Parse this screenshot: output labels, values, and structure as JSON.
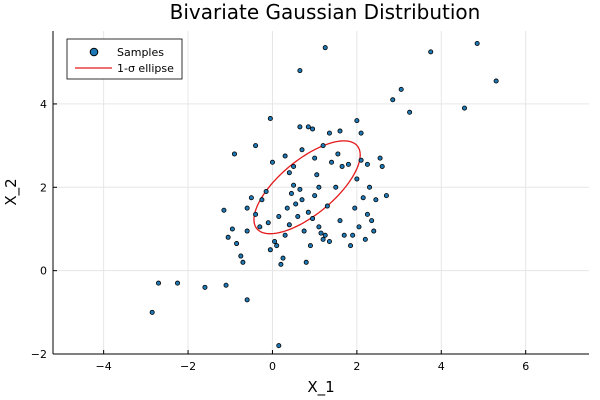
{
  "chart_data": {
    "type": "scatter",
    "title": "Bivariate Gaussian Distribution",
    "xlabel": "X_1",
    "ylabel": "X_2",
    "xlim": [
      -5.2,
      7.5
    ],
    "ylim": [
      -2.0,
      5.75
    ],
    "xticks": [
      -4,
      -2,
      0,
      2,
      4,
      6
    ],
    "yticks": [
      -2,
      0,
      2,
      4
    ],
    "grid": true,
    "legend": {
      "position": "top-left",
      "entries": [
        "Samples",
        "1-σ ellipse"
      ]
    },
    "colors": {
      "samples_fill": "#1f78b4",
      "samples_edge": "#000000",
      "ellipse": "#e41a1c"
    },
    "series": [
      {
        "name": "Samples",
        "kind": "scatter",
        "points": [
          [
            -2.85,
            -1.0
          ],
          [
            -2.7,
            -0.3
          ],
          [
            -2.25,
            -0.3
          ],
          [
            -1.6,
            -0.4
          ],
          [
            -1.1,
            -0.35
          ],
          [
            -0.6,
            -0.7
          ],
          [
            -1.15,
            1.45
          ],
          [
            -1.05,
            0.8
          ],
          [
            -0.95,
            1.0
          ],
          [
            -0.85,
            0.65
          ],
          [
            -0.75,
            0.35
          ],
          [
            -0.7,
            0.2
          ],
          [
            -0.6,
            0.95
          ],
          [
            -0.6,
            1.5
          ],
          [
            -0.5,
            1.75
          ],
          [
            -0.4,
            1.35
          ],
          [
            -0.3,
            1.05
          ],
          [
            -0.25,
            1.7
          ],
          [
            -0.15,
            1.9
          ],
          [
            -0.1,
            1.15
          ],
          [
            -0.05,
            0.5
          ],
          [
            0.05,
            0.7
          ],
          [
            0.1,
            0.6
          ],
          [
            0.15,
            1.3
          ],
          [
            0.2,
            0.15
          ],
          [
            0.25,
            0.3
          ],
          [
            0.3,
            0.85
          ],
          [
            0.35,
            1.5
          ],
          [
            0.4,
            1.1
          ],
          [
            0.45,
            1.85
          ],
          [
            0.5,
            2.05
          ],
          [
            0.55,
            1.6
          ],
          [
            0.6,
            1.3
          ],
          [
            0.65,
            1.95
          ],
          [
            0.7,
            1.7
          ],
          [
            0.75,
            0.95
          ],
          [
            0.8,
            0.2
          ],
          [
            0.85,
            1.4
          ],
          [
            0.9,
            0.6
          ],
          [
            0.95,
            1.25
          ],
          [
            1.0,
            1.8
          ],
          [
            1.05,
            2.3
          ],
          [
            1.1,
            1.05
          ],
          [
            1.15,
            0.9
          ],
          [
            1.2,
            0.75
          ],
          [
            1.25,
            0.85
          ],
          [
            1.3,
            1.55
          ],
          [
            1.35,
            0.7
          ],
          [
            1.4,
            2.6
          ],
          [
            1.5,
            2.0
          ],
          [
            1.55,
            2.8
          ],
          [
            1.6,
            1.2
          ],
          [
            1.65,
            2.5
          ],
          [
            1.7,
            0.85
          ],
          [
            1.8,
            2.55
          ],
          [
            1.85,
            0.6
          ],
          [
            1.9,
            0.85
          ],
          [
            1.95,
            1.5
          ],
          [
            2.0,
            2.2
          ],
          [
            2.05,
            1.05
          ],
          [
            2.1,
            2.65
          ],
          [
            2.15,
            1.75
          ],
          [
            2.2,
            0.75
          ],
          [
            2.25,
            1.35
          ],
          [
            2.3,
            2.0
          ],
          [
            2.35,
            1.2
          ],
          [
            2.4,
            0.95
          ],
          [
            2.45,
            1.7
          ],
          [
            2.55,
            2.7
          ],
          [
            2.6,
            2.5
          ],
          [
            2.7,
            1.8
          ],
          [
            2.85,
            4.1
          ],
          [
            3.05,
            4.35
          ],
          [
            3.25,
            3.8
          ],
          [
            3.75,
            5.25
          ],
          [
            4.55,
            3.9
          ],
          [
            4.85,
            5.45
          ],
          [
            5.3,
            4.55
          ],
          [
            1.25,
            5.35
          ],
          [
            0.65,
            4.8
          ],
          [
            -0.05,
            3.65
          ],
          [
            -0.9,
            2.8
          ],
          [
            -0.4,
            3.0
          ],
          [
            0.0,
            2.6
          ],
          [
            0.3,
            2.75
          ],
          [
            0.65,
            3.45
          ],
          [
            0.85,
            3.45
          ],
          [
            0.95,
            3.4
          ],
          [
            0.7,
            2.9
          ],
          [
            1.0,
            2.7
          ],
          [
            1.2,
            3.0
          ],
          [
            1.35,
            3.3
          ],
          [
            1.6,
            3.35
          ],
          [
            2.0,
            3.6
          ],
          [
            2.1,
            3.3
          ],
          [
            2.25,
            2.55
          ],
          [
            0.15,
            -1.8
          ],
          [
            0.4,
            2.35
          ],
          [
            0.5,
            2.5
          ],
          [
            1.1,
            2.0
          ]
        ]
      },
      {
        "name": "1-σ ellipse",
        "kind": "ellipse",
        "center": [
          0.82,
          2.0
        ],
        "semi_axes": [
          1.55,
          0.65
        ],
        "angle_deg": 40
      }
    ]
  }
}
